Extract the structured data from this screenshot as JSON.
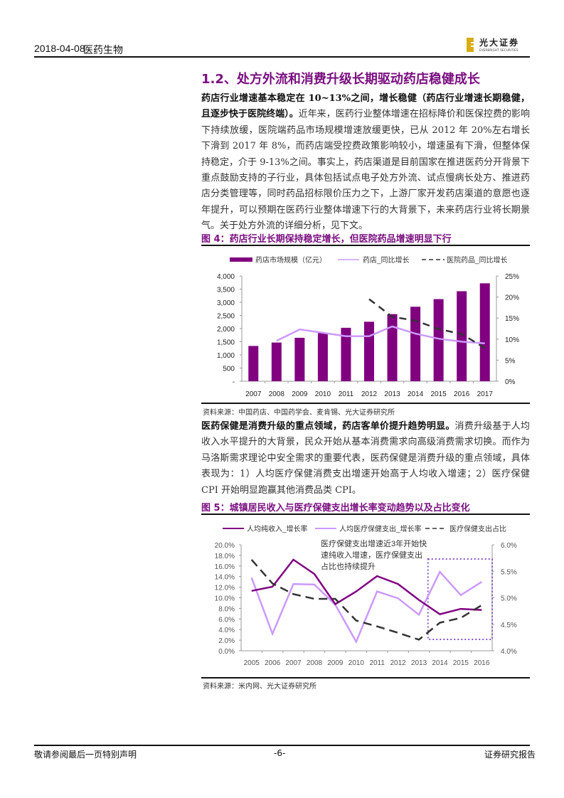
{
  "header": {
    "date": "2018-04-08",
    "sector": "医药生物",
    "logo_cn": "光大证券",
    "logo_en": "EVERBRIGHT SECURITIES",
    "logo_color": "#d9ac14"
  },
  "section": {
    "title": "1.2、处方外流和消费升级长期驱动药店稳健成长"
  },
  "para1": {
    "bold": "药店行业增速基本稳定在 10~13%之间，增长稳健（药店行业增速长期稳健，且逐步快于医院终端）。",
    "text": "近年来，医药行业整体增速在招标降价和医保控费的影响下持续放缓，医院端药品市场规模增速放缓更快，已从 2012 年 20%左右增长下滑到 2017 年 8%，而药店端受控费政策影响较小，增速虽有下滑，但整体保持稳定，介于 9-13%之间。事实上，药店渠道是目前国家在推进医药分开背景下重点鼓励支持的子行业，具体包括试点电子处方外流、试点慢病长处方、推进药店分类管理等，同时药品招标限价压力之下，上游厂家开发药店渠道的意愿也逐年提升，可以预期在医药行业整体增速下行的大背景下，未来药店行业将长期景气。关于处方外流的详细分析，见下文。"
  },
  "figure4": {
    "title": "图 4：药店行业长期保持稳定增长，但医院药品增速明显下行",
    "source": "资料来源：中国药店、中国药学会、麦肯锡、光大证券研究所"
  },
  "para2": {
    "bold": "医药保健是消费升级的重点领域，药店客单价提升趋势明显。",
    "text": "消费升级基于人均收入水平提升的大背景，民众开始从基本消费需求向高级消费需求切换。而作为马洛斯需求理论中安全需求的重要代表，医药保健是消费升级的重点领域，具体表现为：1）人均医疗保健消费支出增速开始高于人均收入增速；2）医疗保健 CPI 开始明显跑赢其他消费品类 CPI。"
  },
  "figure5": {
    "title": "图 5：城镇居民收入与医疗保健支出增长率变动趋势以及占比变化",
    "source": "资料来源：米内网、光大证券研究所"
  },
  "footer": {
    "disclaimer": "敬请参阅最后一页特别声明",
    "page": "-6-",
    "report_type": "证券研究报告"
  },
  "colors": {
    "accent": "#7a0f80",
    "bar": "#800080",
    "light_line": "#cc99ff",
    "dash_line": "#333333"
  },
  "chart_data": [
    {
      "type": "bar",
      "title": "药店行业长期保持稳定增长，但医院药品增速明显下行",
      "categories": [
        "2007",
        "2008",
        "2009",
        "2010",
        "2011",
        "2012",
        "2013",
        "2014",
        "2015",
        "2016",
        "2017"
      ],
      "series": [
        {
          "name": "药店市场规模（亿元）",
          "type": "bar",
          "axis": "left",
          "values": [
            1340,
            1470,
            1650,
            1830,
            2030,
            2260,
            2550,
            2830,
            3120,
            3420,
            3720
          ]
        },
        {
          "name": "药店_同比增长",
          "type": "line",
          "axis": "right",
          "values": [
            null,
            9.6,
            12.3,
            11.5,
            10.7,
            10.7,
            13.0,
            11.3,
            10.1,
            9.4,
            9.0
          ]
        },
        {
          "name": "医院药品_同比增长",
          "type": "line-dashed",
          "axis": "right",
          "values": [
            null,
            null,
            null,
            null,
            null,
            19.5,
            15.3,
            14.4,
            12.4,
            11.2,
            7.9
          ]
        }
      ],
      "ylim_left": [
        0,
        4000
      ],
      "yticks_left": [
        "-",
        "500",
        "1,000",
        "1,500",
        "2,000",
        "2,500",
        "3,000",
        "3,500",
        "4,000"
      ],
      "ylim_right": [
        0,
        25
      ],
      "yticks_right": [
        "0%",
        "5%",
        "10%",
        "15%",
        "20%",
        "25%"
      ],
      "legend_position": "top",
      "grid": false
    },
    {
      "type": "line",
      "title": "城镇居民收入与医疗保健支出增长率变动趋势以及占比变化",
      "categories": [
        "2005",
        "2006",
        "2007",
        "2008",
        "2009",
        "2010",
        "2011",
        "2012",
        "2013",
        "2014",
        "2015",
        "2016"
      ],
      "series": [
        {
          "name": "人均纯收入_增长率",
          "axis": "left",
          "values": [
            11.3,
            12.1,
            17.2,
            14.5,
            8.8,
            11.2,
            14.1,
            12.6,
            9.6,
            6.9,
            7.9,
            7.7
          ]
        },
        {
          "name": "人均医疗保健支出_增长率",
          "axis": "left",
          "values": [
            13.8,
            3.2,
            12.6,
            12.5,
            8.7,
            1.7,
            11.2,
            9.9,
            6.8,
            14.9,
            10.5,
            13.0
          ]
        },
        {
          "name": "医疗保健支出占比",
          "axis": "right",
          "style": "dashed",
          "values": [
            5.72,
            5.27,
            5.07,
            4.98,
            4.98,
            4.57,
            4.46,
            4.34,
            4.21,
            4.53,
            4.62,
            4.86
          ]
        }
      ],
      "ylim_left": [
        0,
        20
      ],
      "yticks_left": [
        "0.0%",
        "2.0%",
        "4.0%",
        "6.0%",
        "8.0%",
        "10.0%",
        "12.0%",
        "14.0%",
        "16.0%",
        "18.0%",
        "20.0%"
      ],
      "ylim_right": [
        4.0,
        6.0
      ],
      "yticks_right": [
        "4.0%",
        "4.5%",
        "5.0%",
        "5.5%",
        "6.0%"
      ],
      "annotation": "医疗保健支出增速近3年开始快速纯收入增速，医疗保健支出占比也持续提升",
      "annotation_lines": [
        "医疗保健支出增速近3年开始快",
        "速纯收入增速，医疗保健支出",
        "占比也持续提升"
      ],
      "highlight_box": {
        "from": "2014",
        "to": "2016",
        "style": "dotted"
      },
      "legend_position": "top",
      "grid": false
    }
  ]
}
